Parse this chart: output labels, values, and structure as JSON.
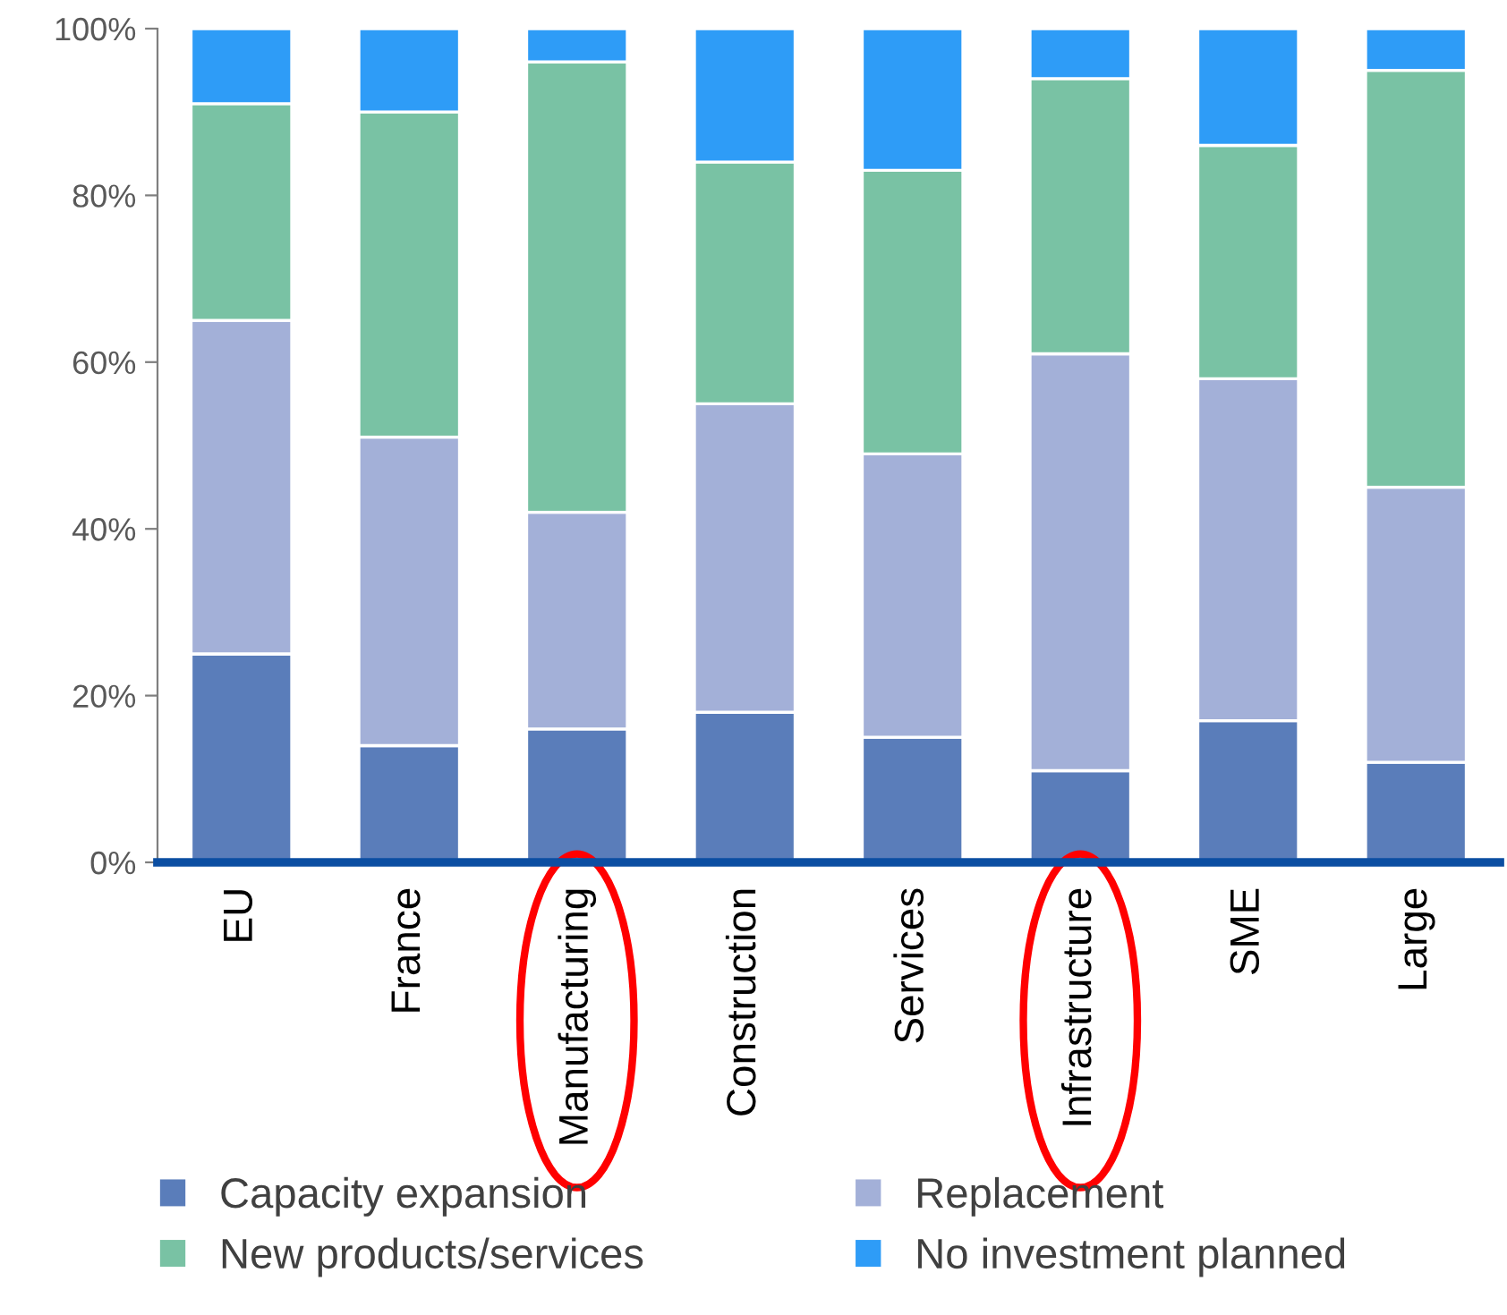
{
  "chart_data": {
    "type": "bar",
    "stacked": true,
    "categories": [
      "EU",
      "France",
      "Manufacturing",
      "Construction",
      "Services",
      "Infrastructure",
      "SME",
      "Large"
    ],
    "series": [
      {
        "name": "Capacity expansion",
        "color": "#5a7dba",
        "values": [
          25,
          14,
          16,
          18,
          15,
          11,
          17,
          12
        ]
      },
      {
        "name": "Replacement",
        "color": "#a3b0d8",
        "values": [
          40,
          37,
          26,
          37,
          34,
          50,
          41,
          33
        ]
      },
      {
        "name": "New products/services",
        "color": "#79c2a4",
        "values": [
          26,
          39,
          54,
          29,
          34,
          33,
          28,
          50
        ]
      },
      {
        "name": "No investment planned",
        "color": "#2e9cf7",
        "values": [
          9,
          10,
          4,
          16,
          17,
          6,
          14,
          5
        ]
      }
    ],
    "ylim": [
      0,
      100
    ],
    "yticks": [
      {
        "value": 0,
        "label": "0%"
      },
      {
        "value": 20,
        "label": "20%"
      },
      {
        "value": 40,
        "label": "40%"
      },
      {
        "value": 60,
        "label": "60%"
      },
      {
        "value": 80,
        "label": "80%"
      },
      {
        "value": 100,
        "label": "100%"
      }
    ],
    "grid": false,
    "legend": "bottom"
  }
}
